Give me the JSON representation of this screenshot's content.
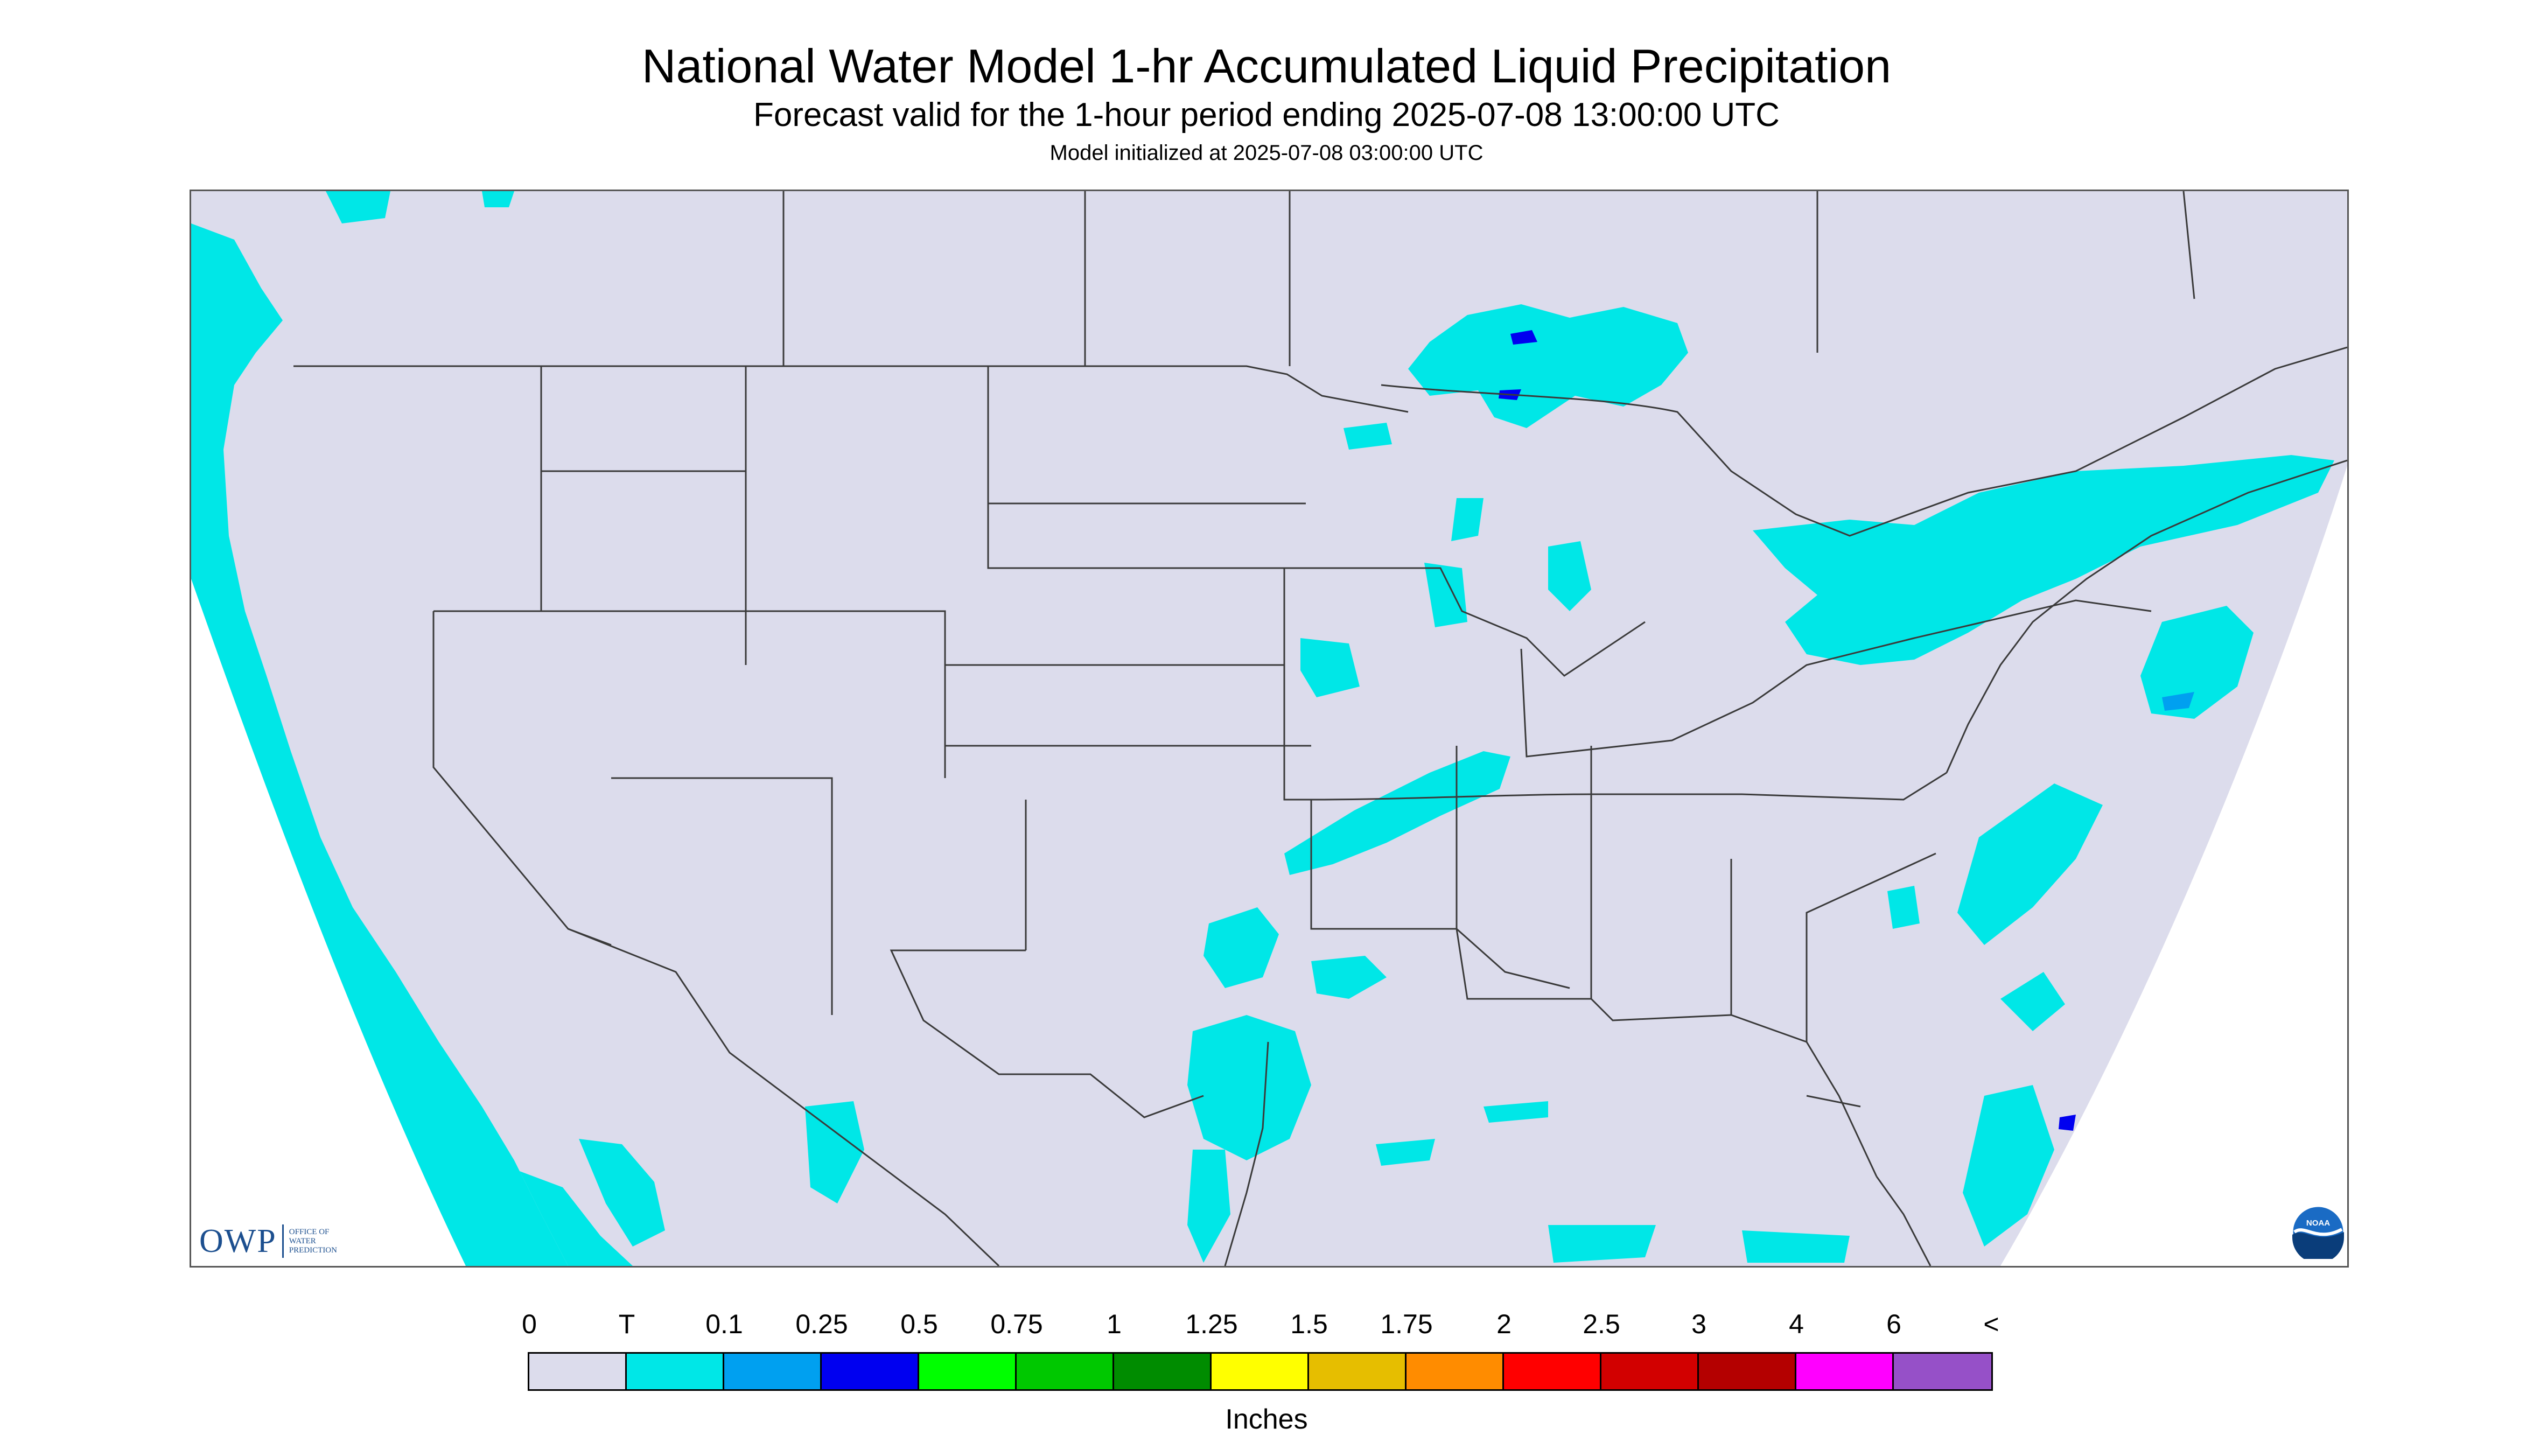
{
  "title": "National Water Model 1-hr Accumulated Liquid Precipitation",
  "subtitle": "Forecast valid for the 1-hour period ending 2025-07-08 13:00:00 UTC",
  "init_line": "Model initialized at 2025-07-08 03:00:00 UTC",
  "logos": {
    "owp_abbrev": "OWP",
    "owp_full": "OFFICE OF WATER PREDICTION",
    "noaa": "NOAA"
  },
  "colors": {
    "background_no_precip": "#dcdcec",
    "trace": "#00e7e7",
    "state_lines": "#3a3a3a",
    "outside_domain": "#ffffff"
  },
  "legend": {
    "units": "Inches",
    "tick_labels": [
      "0",
      "T",
      "0.1",
      "0.25",
      "0.5",
      "0.75",
      "1",
      "1.25",
      "1.5",
      "1.75",
      "2",
      "2.5",
      "3",
      "4",
      "6",
      "<"
    ],
    "swatches": [
      "#dcdcec",
      "#00e7e7",
      "#00a0f0",
      "#0000f0",
      "#00ff00",
      "#00c800",
      "#008c00",
      "#ffff00",
      "#e6be00",
      "#ff8c00",
      "#ff0000",
      "#d20000",
      "#b40000",
      "#ff00ff",
      "#9650c8"
    ]
  }
}
